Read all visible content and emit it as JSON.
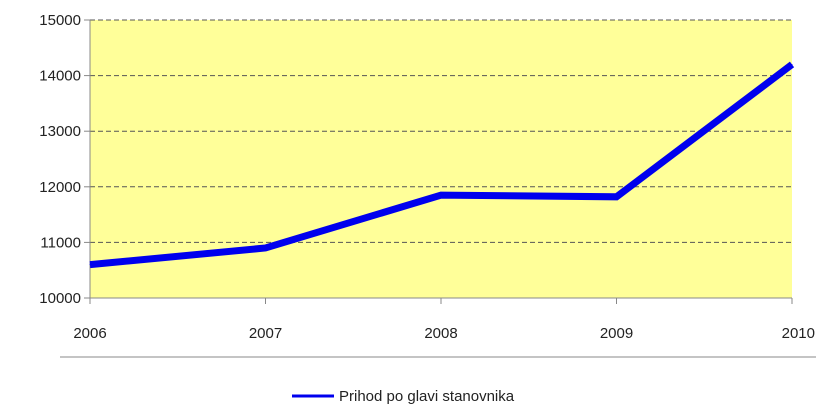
{
  "chart_data": {
    "type": "line",
    "title": "",
    "xlabel": "",
    "ylabel": "",
    "categories": [
      "2006",
      "2007",
      "2008",
      "2009",
      "2010"
    ],
    "series": [
      {
        "name": "Prihod po glavi stanovnika",
        "values": [
          10600,
          10900,
          11850,
          11820,
          14200
        ]
      }
    ],
    "ylim": [
      10000,
      15000
    ],
    "y_ticks": [
      "10000",
      "11000",
      "12000",
      "13000",
      "14000",
      "15000"
    ],
    "grid": "horizontal dashed",
    "legend": "bottom-center",
    "colors": {
      "plot_background": "#FFFF99",
      "series_line": "#0000EE",
      "gridline": "#555555",
      "axis": "#888888"
    }
  }
}
